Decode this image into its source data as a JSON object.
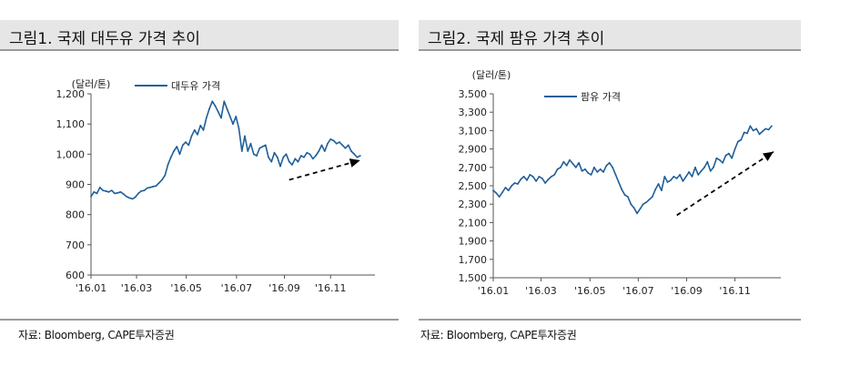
{
  "chart_data": [
    {
      "type": "line",
      "title": "그림1. 국제 대두유 가격 추이",
      "unit_label": "(달러/톤)",
      "series": [
        {
          "name": "대두유 가격",
          "color": "#1f5f9a",
          "points": [
            [
              0,
              860
            ],
            [
              0.5,
              875
            ],
            [
              1,
              870
            ],
            [
              1.5,
              890
            ],
            [
              2,
              880
            ],
            [
              2.5,
              878
            ],
            [
              3,
              875
            ],
            [
              3.5,
              880
            ],
            [
              4,
              870
            ],
            [
              4.5,
              872
            ],
            [
              5,
              875
            ],
            [
              5.5,
              868
            ],
            [
              6,
              860
            ],
            [
              6.5,
              855
            ],
            [
              7,
              852
            ],
            [
              7.5,
              858
            ],
            [
              8,
              870
            ],
            [
              8.5,
              878
            ],
            [
              9,
              880
            ],
            [
              9.5,
              888
            ],
            [
              10,
              890
            ],
            [
              10.5,
              893
            ],
            [
              11,
              895
            ],
            [
              11.5,
              905
            ],
            [
              12,
              915
            ],
            [
              12.5,
              930
            ],
            [
              13,
              965
            ],
            [
              13.5,
              990
            ],
            [
              14,
              1010
            ],
            [
              14.5,
              1025
            ],
            [
              15,
              1000
            ],
            [
              15.5,
              1030
            ],
            [
              16,
              1040
            ],
            [
              16.5,
              1030
            ],
            [
              17,
              1060
            ],
            [
              17.5,
              1080
            ],
            [
              18,
              1065
            ],
            [
              18.5,
              1095
            ],
            [
              19,
              1080
            ],
            [
              19.5,
              1120
            ],
            [
              20,
              1150
            ],
            [
              20.5,
              1175
            ],
            [
              21,
              1160
            ],
            [
              21.5,
              1140
            ],
            [
              22,
              1120
            ],
            [
              22.5,
              1175
            ],
            [
              23,
              1150
            ],
            [
              23.5,
              1125
            ],
            [
              24,
              1100
            ],
            [
              24.5,
              1125
            ],
            [
              25,
              1085
            ],
            [
              25.5,
              1010
            ],
            [
              26,
              1060
            ],
            [
              26.5,
              1010
            ],
            [
              27,
              1035
            ],
            [
              27.5,
              1000
            ],
            [
              28,
              995
            ],
            [
              28.5,
              1020
            ],
            [
              29,
              1025
            ],
            [
              29.5,
              1030
            ],
            [
              30,
              990
            ],
            [
              30.5,
              975
            ],
            [
              31,
              1005
            ],
            [
              31.5,
              990
            ],
            [
              32,
              960
            ],
            [
              32.5,
              990
            ],
            [
              33,
              1000
            ],
            [
              33.5,
              975
            ],
            [
              34,
              965
            ],
            [
              34.5,
              985
            ],
            [
              35,
              975
            ],
            [
              35.5,
              995
            ],
            [
              36,
              990
            ],
            [
              36.5,
              1005
            ],
            [
              37,
              1000
            ],
            [
              37.5,
              985
            ],
            [
              38,
              995
            ],
            [
              38.5,
              1010
            ],
            [
              39,
              1030
            ],
            [
              39.5,
              1010
            ],
            [
              40,
              1035
            ],
            [
              40.5,
              1050
            ],
            [
              41,
              1045
            ],
            [
              41.5,
              1035
            ],
            [
              42,
              1040
            ],
            [
              42.5,
              1030
            ],
            [
              43,
              1020
            ],
            [
              43.5,
              1030
            ],
            [
              44,
              1010
            ],
            [
              44.5,
              1000
            ],
            [
              45,
              990
            ],
            [
              45.5,
              995
            ]
          ]
        }
      ],
      "xlim": [
        0,
        48
      ],
      "ylim": [
        600,
        1200
      ],
      "y_ticks": [
        600,
        700,
        800,
        900,
        1000,
        1100,
        1200
      ],
      "y_tick_labels": [
        "600",
        "700",
        "800",
        "900",
        "1,000",
        "1,100",
        "1,200"
      ],
      "x_ticks": [
        0,
        7.7,
        16.1,
        24.6,
        32.7,
        40.5
      ],
      "x_tick_labels": [
        "'16.01",
        "'16.03",
        "'16.05",
        "'16.07",
        "'16.09",
        "'16.11"
      ],
      "arrow": {
        "from": [
          33.5,
          915
        ],
        "to": [
          45.5,
          980
        ]
      },
      "legend_position": "top-left",
      "source": "자료: Bloomberg, CAPE투자증권"
    },
    {
      "type": "line",
      "title": "그림2. 국제 팜유 가격 추이",
      "unit_label": "(달러/톤)",
      "series": [
        {
          "name": "팜유 가격",
          "color": "#1f5f9a",
          "points": [
            [
              0,
              2450
            ],
            [
              0.5,
              2420
            ],
            [
              1,
              2380
            ],
            [
              1.5,
              2430
            ],
            [
              2,
              2480
            ],
            [
              2.5,
              2450
            ],
            [
              3,
              2500
            ],
            [
              3.5,
              2530
            ],
            [
              4,
              2520
            ],
            [
              4.5,
              2570
            ],
            [
              5,
              2600
            ],
            [
              5.5,
              2560
            ],
            [
              6,
              2620
            ],
            [
              6.5,
              2600
            ],
            [
              7,
              2550
            ],
            [
              7.5,
              2600
            ],
            [
              8,
              2580
            ],
            [
              8.5,
              2530
            ],
            [
              9,
              2570
            ],
            [
              9.5,
              2600
            ],
            [
              10,
              2620
            ],
            [
              10.5,
              2680
            ],
            [
              11,
              2700
            ],
            [
              11.5,
              2760
            ],
            [
              12,
              2720
            ],
            [
              12.5,
              2780
            ],
            [
              13,
              2740
            ],
            [
              13.5,
              2700
            ],
            [
              14,
              2750
            ],
            [
              14.5,
              2660
            ],
            [
              15,
              2680
            ],
            [
              15.5,
              2640
            ],
            [
              16,
              2620
            ],
            [
              16.5,
              2700
            ],
            [
              17,
              2650
            ],
            [
              17.5,
              2680
            ],
            [
              18,
              2650
            ],
            [
              18.5,
              2720
            ],
            [
              19,
              2750
            ],
            [
              19.5,
              2700
            ],
            [
              20,
              2620
            ],
            [
              20.5,
              2540
            ],
            [
              21,
              2460
            ],
            [
              21.5,
              2400
            ],
            [
              22,
              2380
            ],
            [
              22.5,
              2300
            ],
            [
              23,
              2260
            ],
            [
              23.5,
              2200
            ],
            [
              24,
              2250
            ],
            [
              24.5,
              2300
            ],
            [
              25,
              2320
            ],
            [
              25.5,
              2350
            ],
            [
              26,
              2380
            ],
            [
              26.5,
              2460
            ],
            [
              27,
              2520
            ],
            [
              27.5,
              2450
            ],
            [
              28,
              2600
            ],
            [
              28.5,
              2540
            ],
            [
              29,
              2560
            ],
            [
              29.5,
              2600
            ],
            [
              30,
              2580
            ],
            [
              30.5,
              2620
            ],
            [
              31,
              2550
            ],
            [
              31.5,
              2600
            ],
            [
              32,
              2650
            ],
            [
              32.5,
              2600
            ],
            [
              33,
              2700
            ],
            [
              33.5,
              2620
            ],
            [
              34,
              2660
            ],
            [
              34.5,
              2700
            ],
            [
              35,
              2760
            ],
            [
              35.5,
              2660
            ],
            [
              36,
              2700
            ],
            [
              36.5,
              2800
            ],
            [
              37,
              2780
            ],
            [
              37.5,
              2750
            ],
            [
              38,
              2830
            ],
            [
              38.5,
              2850
            ],
            [
              39,
              2800
            ],
            [
              39.5,
              2900
            ],
            [
              40,
              2980
            ],
            [
              40.5,
              3000
            ],
            [
              41,
              3080
            ],
            [
              41.5,
              3070
            ],
            [
              42,
              3150
            ],
            [
              42.5,
              3100
            ],
            [
              43,
              3120
            ],
            [
              43.5,
              3060
            ],
            [
              44,
              3090
            ],
            [
              44.5,
              3120
            ],
            [
              45,
              3110
            ],
            [
              45.5,
              3150
            ]
          ]
        }
      ],
      "xlim": [
        0,
        47
      ],
      "ylim": [
        1500,
        3500
      ],
      "y_ticks": [
        1500,
        1700,
        1900,
        2100,
        2300,
        2500,
        2700,
        2900,
        3100,
        3300,
        3500
      ],
      "y_tick_labels": [
        "1,500",
        "1,700",
        "1,900",
        "2,100",
        "2,300",
        "2,500",
        "2,700",
        "2,900",
        "3,100",
        "3,300",
        "3,500"
      ],
      "x_ticks": [
        0,
        7.8,
        15.8,
        23.7,
        31.6,
        39.5
      ],
      "x_tick_labels": [
        "'16.01",
        "'16.03",
        "'16.05",
        "'16.07",
        "'16.09",
        "'16.11"
      ],
      "arrow": {
        "from": [
          30,
          2180
        ],
        "to": [
          45.8,
          2870
        ]
      },
      "legend_position": "top-left",
      "source": "자료: Bloomberg, CAPE투자증권"
    }
  ]
}
